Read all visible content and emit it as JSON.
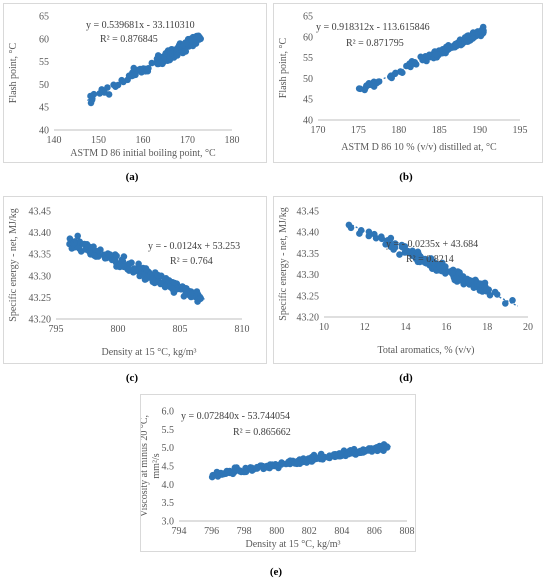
{
  "captions": [
    "(a)",
    "(b)",
    "(c)",
    "(d)",
    "(e)"
  ],
  "chart_data": [
    {
      "id": "a",
      "type": "scatter",
      "title": "",
      "xlabel": "ASTM D 86 initial boiling point, °C",
      "ylabel": "Flash point, °C",
      "xlim": [
        140,
        180
      ],
      "ylim": [
        40,
        65
      ],
      "xticks": [
        140,
        150,
        160,
        170,
        180
      ],
      "yticks": [
        40,
        45,
        50,
        55,
        60,
        65
      ],
      "equation": "y = 0.539681x - 33.110310",
      "r2": "R² = 0.876845",
      "trend": {
        "slope": 0.539681,
        "intercept": -33.11031,
        "x": [
          147.5,
          173
        ]
      },
      "color": "#2E75B6"
    },
    {
      "id": "b",
      "type": "scatter",
      "title": "",
      "xlabel": "ASTM D 86 10 % (v/v) distilled at, °C",
      "ylabel": "Flash point, °C",
      "xlim": [
        170,
        195
      ],
      "ylim": [
        40,
        65
      ],
      "xticks": [
        170,
        175,
        180,
        185,
        190,
        195
      ],
      "yticks": [
        40,
        45,
        50,
        55,
        60,
        65
      ],
      "equation": "y = 0.918312x - 113.615846",
      "r2": "R² = 0.871795",
      "trend": {
        "slope": 0.918312,
        "intercept": -113.615846,
        "x": [
          175,
          191
        ]
      },
      "color": "#2E75B6"
    },
    {
      "id": "c",
      "type": "scatter",
      "title": "",
      "xlabel": "Density at 15 °C, kg/m³",
      "ylabel": "Specific energy - net, MJ/kg",
      "xlim": [
        795,
        810
      ],
      "ylim": [
        43.2,
        43.45
      ],
      "xticks": [
        795,
        800,
        805,
        810
      ],
      "yticks": [
        43.2,
        43.25,
        43.3,
        43.35,
        43.4,
        43.45
      ],
      "equation": "y = - 0.0124x + 53.253",
      "r2": "R² = 0.764",
      "trend": {
        "slope": -0.0124,
        "intercept": 53.253,
        "x": [
          796,
          807
        ]
      },
      "color": "#2E75B6"
    },
    {
      "id": "d",
      "type": "scatter",
      "title": "",
      "xlabel": "Total aromatics, % (v/v)",
      "ylabel": "Specific energy - net, MJ/kg",
      "xlim": [
        10,
        20
      ],
      "ylim": [
        43.2,
        43.45
      ],
      "xticks": [
        10,
        12,
        14,
        16,
        18,
        20
      ],
      "yticks": [
        43.2,
        43.25,
        43.3,
        43.35,
        43.4,
        43.45
      ],
      "equation": "y = - 0.0235x + 43.684",
      "r2": "R² = 0.8214",
      "trend": {
        "slope": -0.0235,
        "intercept": 43.684,
        "x": [
          11.2,
          19.5
        ]
      },
      "color": "#2E75B6"
    },
    {
      "id": "e",
      "type": "scatter",
      "title": "",
      "xlabel": "Density at 15 °C, kg/m³",
      "ylabel": "Viscosity at minus 20 °C, mm²/s",
      "xlim": [
        794,
        808
      ],
      "ylim": [
        3,
        6
      ],
      "xticks": [
        794,
        796,
        798,
        800,
        802,
        804,
        806,
        808
      ],
      "yticks": [
        3,
        3.5,
        4,
        4.5,
        5,
        5.5,
        6
      ],
      "equation": "y = 0.072840x - 53.744054",
      "r2": "R² = 0.865662",
      "trend": {
        "slope": 0.07284,
        "intercept": -53.744054,
        "x": [
          796,
          807
        ]
      },
      "color": "#2E75B6"
    }
  ]
}
